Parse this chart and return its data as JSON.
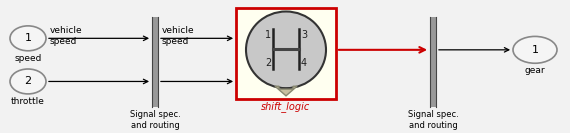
{
  "fig_bg": "#f2f2f2",
  "input1_label": "1",
  "input1_sublabel": "speed",
  "input1_text": "vehicle\nspeed",
  "input2_label": "2",
  "input2_sublabel": "throttle",
  "routing1_label": "Signal spec.\nand routing",
  "routing1_text": "vehicle\nspeed",
  "block_label": "shift_logic",
  "block_border": "#cc0000",
  "block_bg": "#fffff0",
  "block_ellipse_bg": "#c8c8c8",
  "routing2_label": "Signal spec.\nand routing",
  "output_label": "1",
  "output_sublabel": "gear",
  "arrow_color": "#000000",
  "red_arrow_color": "#cc0000",
  "bar_color": "#999999",
  "bar_color_dark": "#444444",
  "oval_edge": "#888888",
  "oval_face": "#f5f5f5"
}
